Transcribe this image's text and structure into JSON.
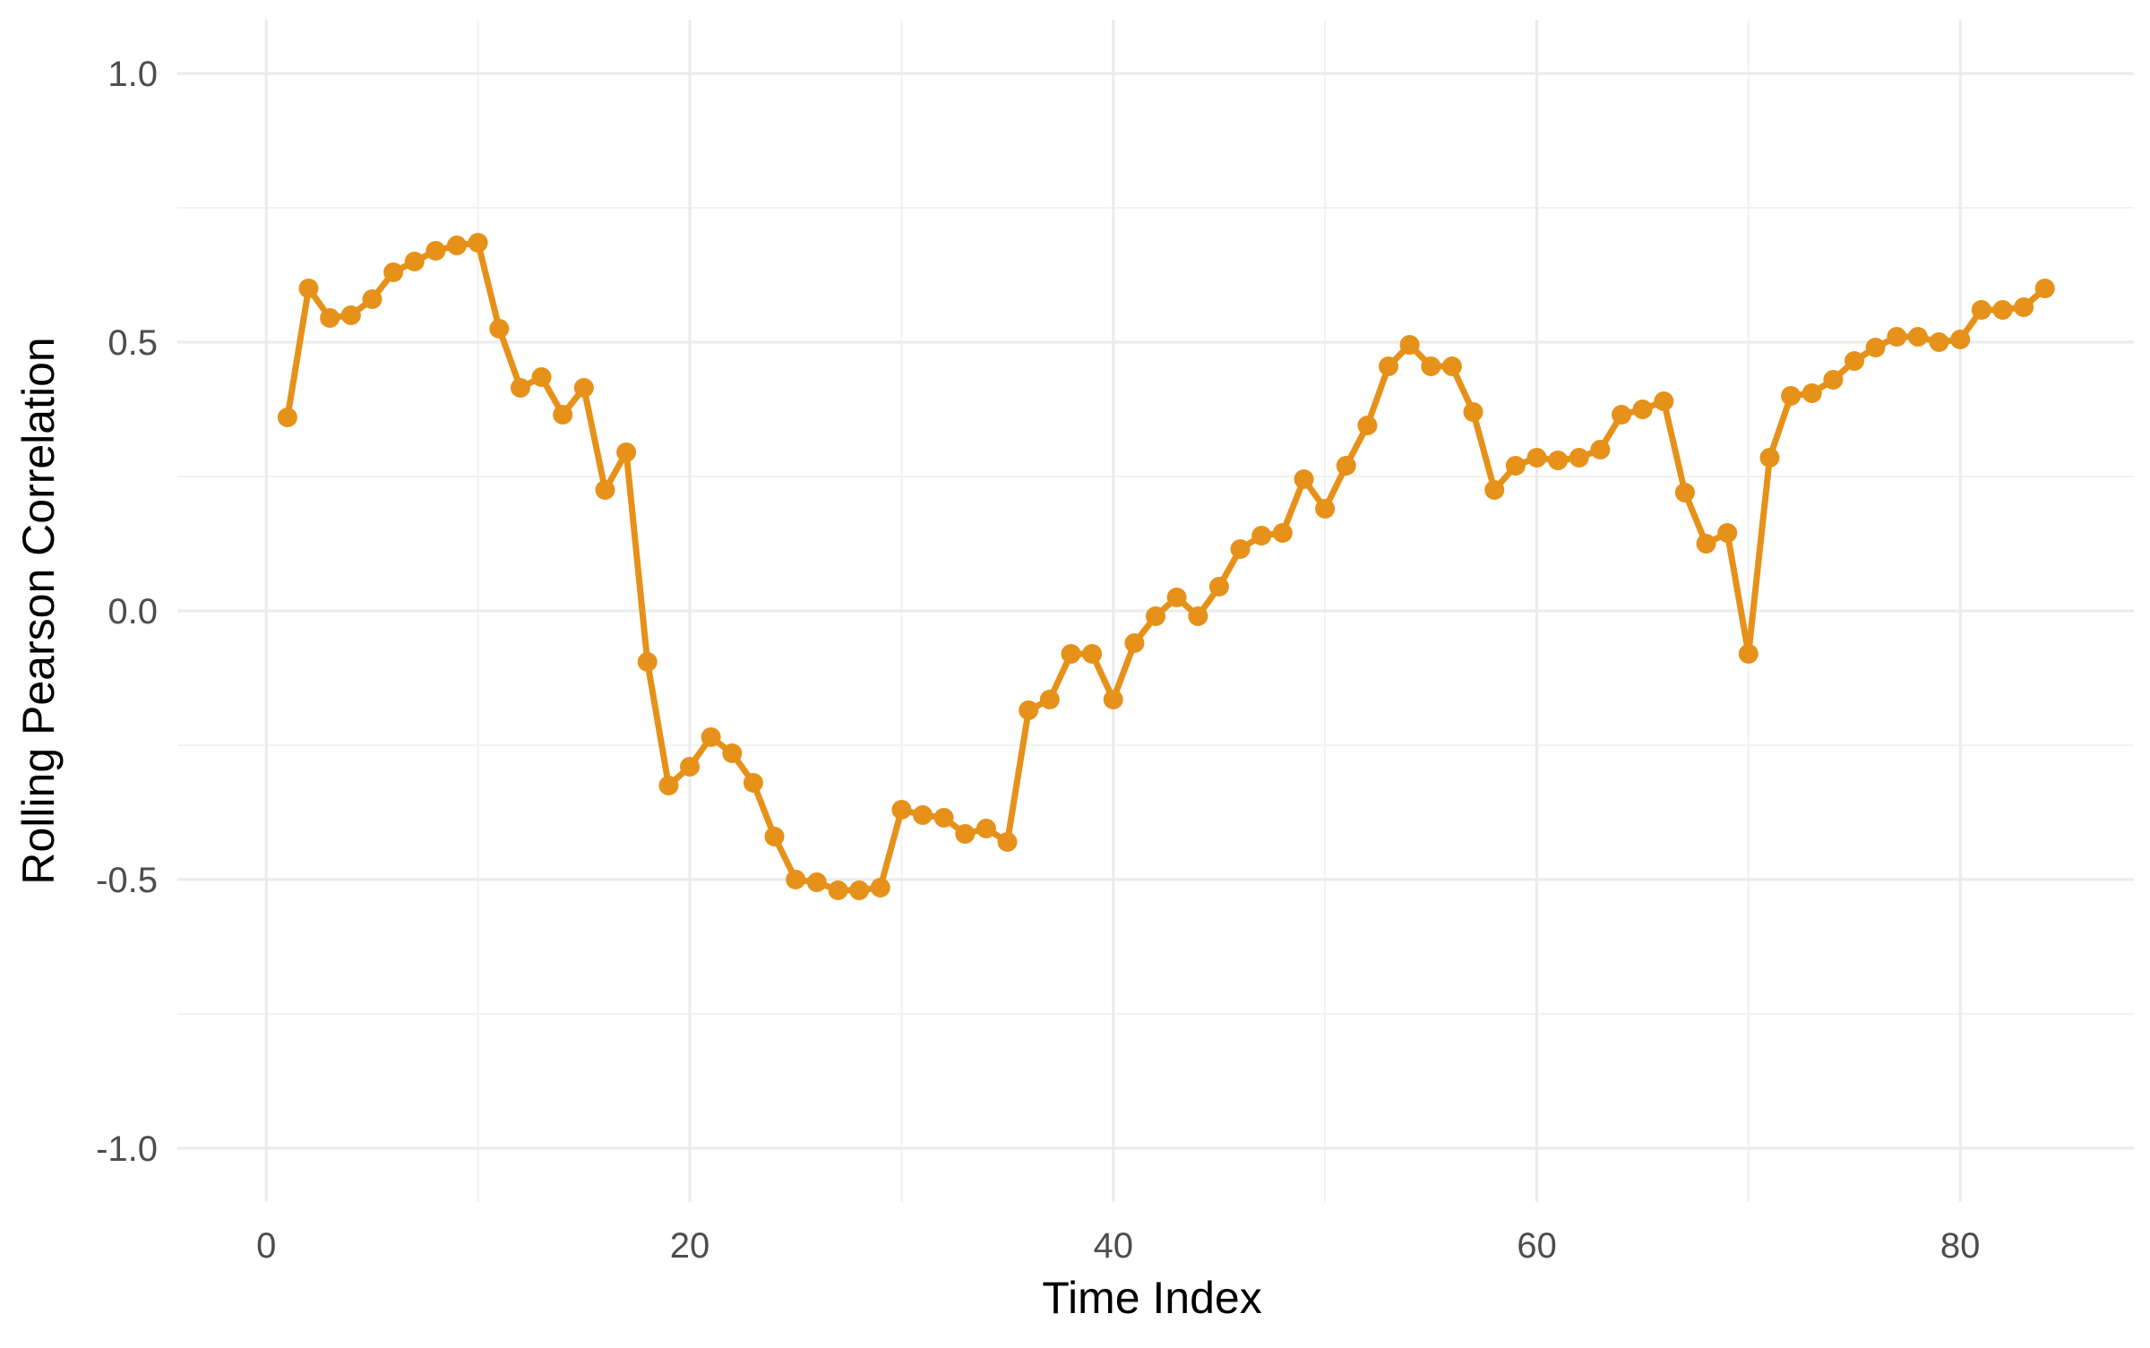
{
  "chart_data": {
    "type": "line",
    "title": "",
    "xlabel": "Time Index",
    "ylabel": "Rolling Pearson Correlation",
    "xlim": [
      -4.2,
      88.2
    ],
    "ylim": [
      -1.1,
      1.1
    ],
    "x_ticks": [
      0,
      20,
      40,
      60,
      80
    ],
    "x_tick_labels": [
      "0",
      "20",
      "40",
      "60",
      "80"
    ],
    "y_ticks": [
      -1.0,
      -0.5,
      0.0,
      0.5,
      1.0
    ],
    "y_tick_labels": [
      "-1.0",
      "-0.5",
      "0.0",
      "0.5",
      "1.0"
    ],
    "x_minor_ticks": [
      10,
      30,
      50,
      70
    ],
    "y_minor_ticks": [
      -0.75,
      -0.25,
      0.25,
      0.75
    ],
    "grid": true,
    "legend": "none",
    "color": "#E69119",
    "series": [
      {
        "x": [
          1,
          2,
          3,
          4,
          5,
          6,
          7,
          8,
          9,
          10,
          11,
          12,
          13,
          14,
          15,
          16,
          17,
          18,
          19,
          20,
          21,
          22,
          23,
          24,
          25,
          26,
          27,
          28,
          29,
          30,
          31,
          32,
          33,
          34,
          35,
          36,
          37,
          38,
          39,
          40,
          41,
          42,
          43,
          44,
          45,
          46,
          47,
          48,
          49,
          50,
          51,
          52,
          53,
          54,
          55,
          56,
          57,
          58,
          59,
          60,
          61,
          62,
          63,
          64,
          65,
          66,
          67,
          68,
          69,
          70,
          71,
          72,
          73,
          74,
          75,
          76,
          77,
          78,
          79,
          80,
          81,
          82,
          83,
          84
        ],
        "values": [
          0.36,
          0.6,
          0.545,
          0.55,
          0.58,
          0.63,
          0.65,
          0.67,
          0.68,
          0.685,
          0.525,
          0.415,
          0.435,
          0.365,
          0.415,
          0.225,
          0.295,
          -0.095,
          -0.325,
          -0.29,
          -0.235,
          -0.265,
          -0.32,
          -0.42,
          -0.5,
          -0.505,
          -0.52,
          -0.52,
          -0.515,
          -0.37,
          -0.38,
          -0.385,
          -0.415,
          -0.405,
          -0.43,
          -0.185,
          -0.165,
          -0.08,
          -0.08,
          -0.165,
          -0.06,
          -0.01,
          0.025,
          -0.01,
          0.045,
          0.115,
          0.14,
          0.145,
          0.245,
          0.19,
          0.27,
          0.345,
          0.455,
          0.495,
          0.455,
          0.455,
          0.37,
          0.225,
          0.27,
          0.285,
          0.28,
          0.285,
          0.3,
          0.365,
          0.375,
          0.39,
          0.22,
          0.125,
          0.145,
          -0.08,
          0.285,
          0.4,
          0.405,
          0.43,
          0.465,
          0.49,
          0.51,
          0.51,
          0.5,
          0.505,
          0.56,
          0.56,
          0.565,
          0.6
        ]
      }
    ]
  }
}
